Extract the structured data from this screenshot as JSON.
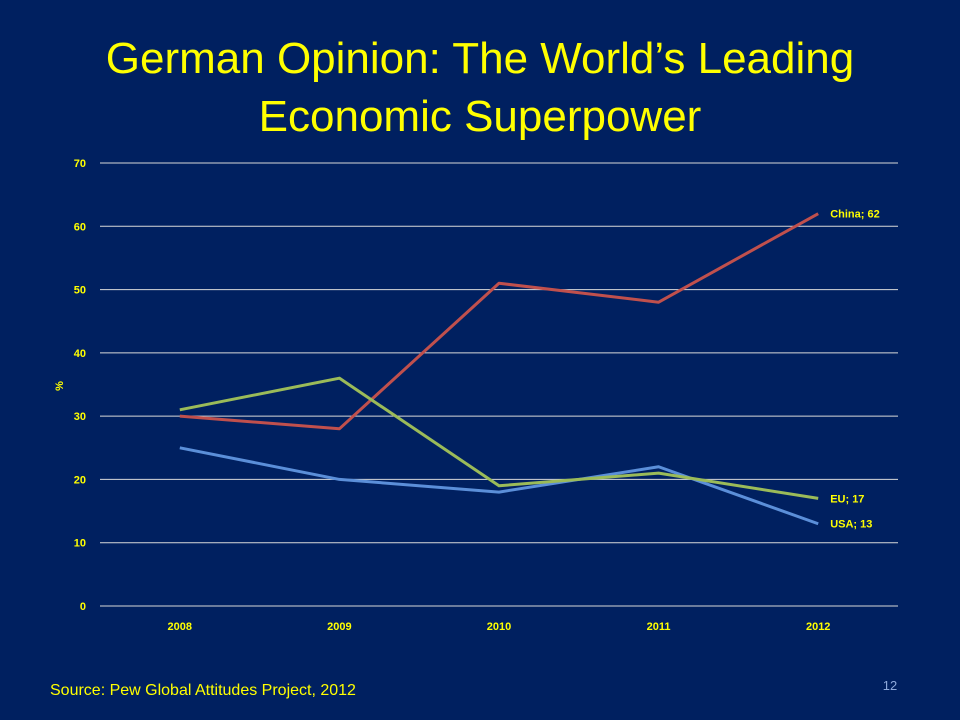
{
  "slide": {
    "title_line1": "German Opinion: The World’s Leading",
    "title_line2": "Economic Superpower",
    "source": "Source: Pew Global Attitudes Project, 2012",
    "page_number": "12"
  },
  "colors": {
    "background": "#002060",
    "text": "#FFFF00",
    "USA": "#5B8FD9",
    "China": "#C0504D",
    "EU": "#9BBB59",
    "grid": "#D9D9D9"
  },
  "chart_data": {
    "type": "line",
    "x": [
      "2008",
      "2009",
      "2010",
      "2011",
      "2012"
    ],
    "series": [
      {
        "name": "USA",
        "values": [
          25,
          20,
          18,
          22,
          13
        ],
        "label": "USA; 13"
      },
      {
        "name": "China",
        "values": [
          30,
          28,
          51,
          48,
          62
        ],
        "label": "China; 62"
      },
      {
        "name": "EU",
        "values": [
          31,
          36,
          19,
          21,
          17
        ],
        "label": "EU; 17"
      }
    ],
    "ylabel": "%",
    "ylim": [
      0,
      70
    ],
    "yticks": [
      "0",
      "10",
      "20",
      "30",
      "40",
      "50",
      "60",
      "70"
    ],
    "grid": true,
    "legend": "none"
  }
}
